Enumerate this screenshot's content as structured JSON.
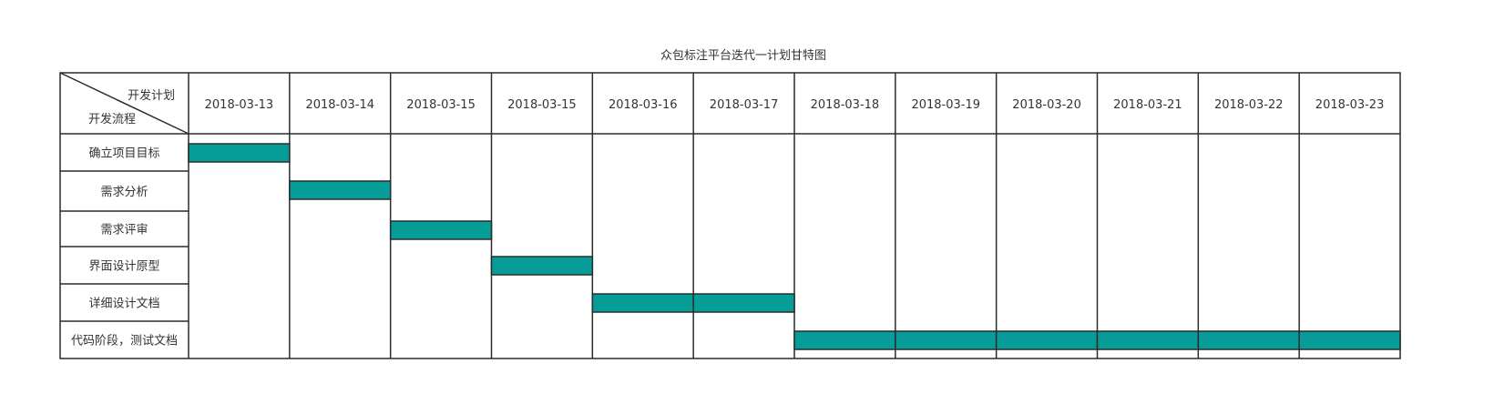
{
  "chart_data": {
    "type": "gantt",
    "title": "众包标注平台迭代一计划甘特图",
    "corner_top_label": "开发计划",
    "corner_bottom_label": "开发流程",
    "dates": [
      "2018-03-13",
      "2018-03-14",
      "2018-03-15",
      "2018-03-15",
      "2018-03-16",
      "2018-03-17",
      "2018-03-18",
      "2018-03-19",
      "2018-03-20",
      "2018-03-21",
      "2018-03-22",
      "2018-03-23"
    ],
    "tasks": [
      {
        "label": "确立项目目标",
        "start_index": 0,
        "end_index": 0
      },
      {
        "label": "需求分析",
        "start_index": 1,
        "end_index": 1
      },
      {
        "label": "需求评审",
        "start_index": 2,
        "end_index": 2
      },
      {
        "label": "界面设计原型",
        "start_index": 3,
        "end_index": 3
      },
      {
        "label": "详细设计文档",
        "start_index": 4,
        "end_index": 5
      },
      {
        "label": "代码阶段，测试文档",
        "start_index": 6,
        "end_index": 11
      }
    ],
    "colors": {
      "bar": "#069c98",
      "line": "#2b2b2b",
      "text": "#333333"
    }
  }
}
